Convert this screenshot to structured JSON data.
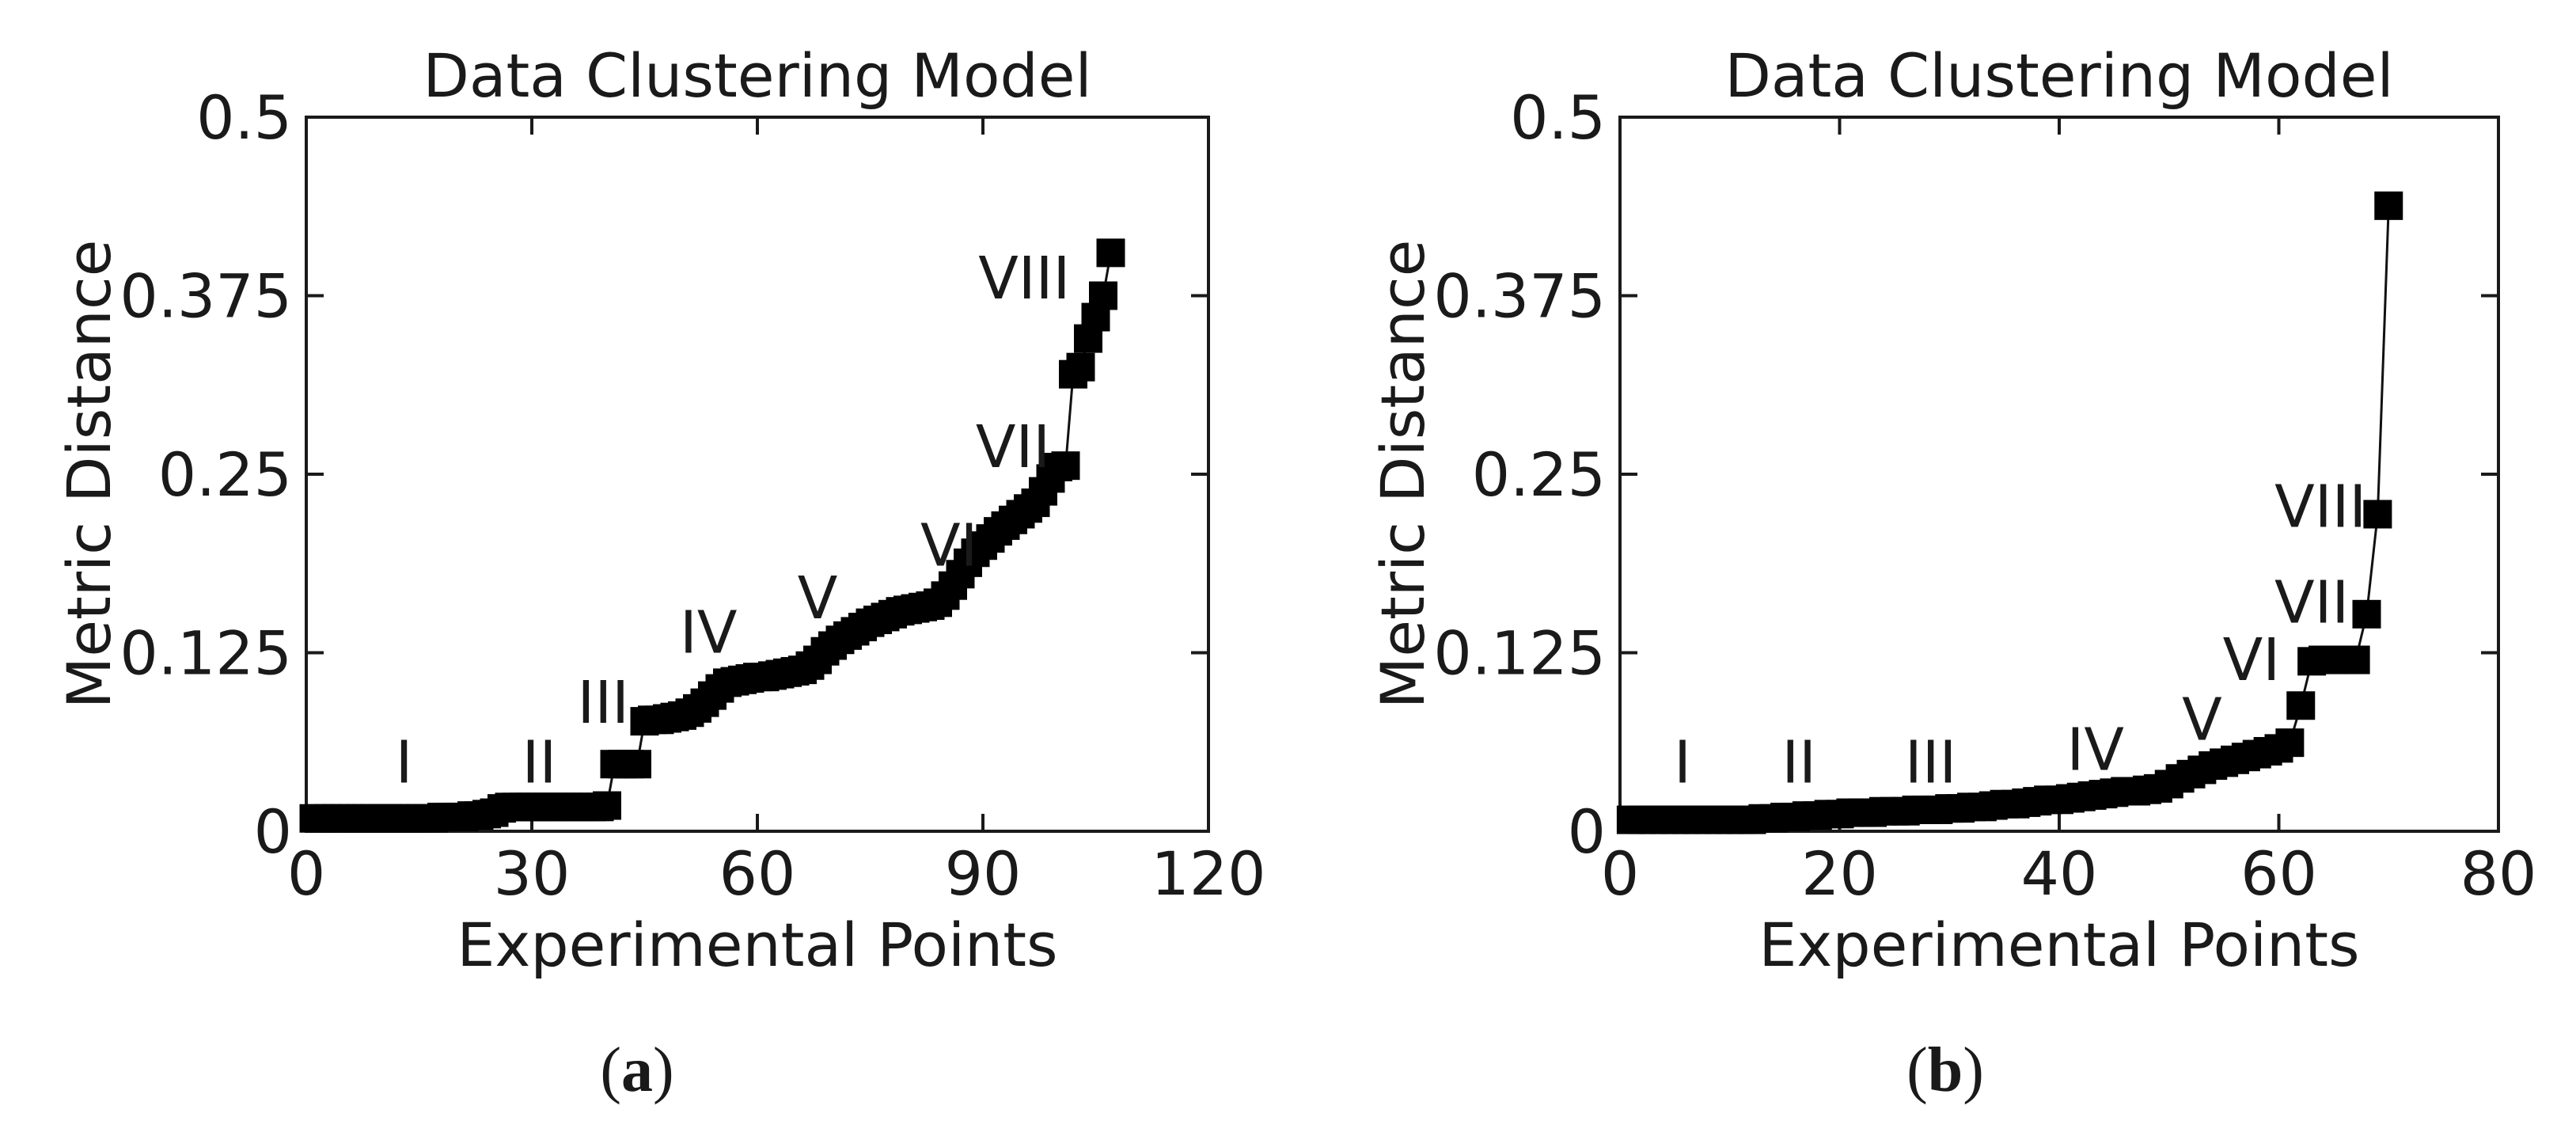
{
  "chart_data": [
    {
      "type": "line",
      "panel_label": "a",
      "title": "Data Clustering Model",
      "xlabel": "Experimental Points",
      "ylabel": "Metric Distance",
      "xlim": [
        0,
        120
      ],
      "ylim": [
        0,
        0.5
      ],
      "x_ticks": [
        0,
        30,
        60,
        90,
        120
      ],
      "x_tick_labels": [
        "0",
        "30",
        "60",
        "90",
        "120"
      ],
      "y_ticks": [
        0,
        0.125,
        0.25,
        0.375,
        0.5
      ],
      "y_tick_labels": [
        "0",
        "0.125",
        "0.25",
        "0.375",
        "0.5"
      ],
      "marker": "square",
      "series": [
        {
          "name": "Metric Distance",
          "x": [
            1,
            2,
            3,
            4,
            5,
            6,
            7,
            8,
            9,
            10,
            11,
            12,
            13,
            14,
            15,
            16,
            17,
            18,
            19,
            20,
            21,
            22,
            23,
            24,
            25,
            26,
            27,
            28,
            29,
            30,
            31,
            32,
            33,
            34,
            35,
            36,
            37,
            38,
            39,
            40,
            41,
            42,
            43,
            44,
            45,
            46,
            47,
            48,
            49,
            50,
            51,
            52,
            53,
            54,
            55,
            56,
            57,
            58,
            59,
            60,
            61,
            62,
            63,
            64,
            65,
            66,
            67,
            68,
            69,
            70,
            71,
            72,
            73,
            74,
            75,
            76,
            77,
            78,
            79,
            80,
            81,
            82,
            83,
            84,
            85,
            86,
            87,
            88,
            89,
            90,
            91,
            92,
            93,
            94,
            95,
            96,
            97,
            98,
            99,
            100,
            101,
            102,
            103,
            104,
            105,
            106,
            107
          ],
          "y": [
            0.009,
            0.009,
            0.009,
            0.009,
            0.009,
            0.009,
            0.009,
            0.009,
            0.009,
            0.009,
            0.009,
            0.009,
            0.009,
            0.009,
            0.009,
            0.009,
            0.009,
            0.01,
            0.01,
            0.01,
            0.01,
            0.011,
            0.011,
            0.012,
            0.013,
            0.016,
            0.017,
            0.017,
            0.017,
            0.017,
            0.017,
            0.017,
            0.017,
            0.017,
            0.017,
            0.017,
            0.017,
            0.017,
            0.017,
            0.018,
            0.047,
            0.047,
            0.047,
            0.047,
            0.077,
            0.078,
            0.078,
            0.079,
            0.08,
            0.081,
            0.083,
            0.086,
            0.09,
            0.095,
            0.1,
            0.104,
            0.105,
            0.106,
            0.107,
            0.108,
            0.108,
            0.109,
            0.11,
            0.111,
            0.112,
            0.113,
            0.116,
            0.12,
            0.126,
            0.13,
            0.134,
            0.137,
            0.14,
            0.143,
            0.146,
            0.148,
            0.15,
            0.152,
            0.154,
            0.155,
            0.156,
            0.157,
            0.158,
            0.16,
            0.165,
            0.172,
            0.18,
            0.188,
            0.195,
            0.2,
            0.205,
            0.21,
            0.214,
            0.218,
            0.222,
            0.226,
            0.23,
            0.238,
            0.247,
            0.255,
            0.256,
            0.32,
            0.325,
            0.345,
            0.36,
            0.375,
            0.405
          ]
        }
      ],
      "annotations": [
        {
          "text": "I",
          "x": 13,
          "y": 0.034
        },
        {
          "text": "II",
          "x": 31,
          "y": 0.034
        },
        {
          "text": "III",
          "x": 39.5,
          "y": 0.076
        },
        {
          "text": "IV",
          "x": 53.5,
          "y": 0.125
        },
        {
          "text": "V",
          "x": 68,
          "y": 0.149
        },
        {
          "text": "VI",
          "x": 85.5,
          "y": 0.186
        },
        {
          "text": "VII",
          "x": 94,
          "y": 0.255
        },
        {
          "text": "VIII",
          "x": 95.5,
          "y": 0.373
        }
      ]
    },
    {
      "type": "line",
      "panel_label": "b",
      "title": "Data Clustering Model",
      "xlabel": "Experimental Points",
      "ylabel": "Metric Distance",
      "xlim": [
        0,
        80
      ],
      "ylim": [
        0,
        0.5
      ],
      "x_ticks": [
        0,
        20,
        40,
        60,
        80
      ],
      "x_tick_labels": [
        "0",
        "20",
        "40",
        "60",
        "80"
      ],
      "y_ticks": [
        0,
        0.125,
        0.25,
        0.375,
        0.5
      ],
      "y_tick_labels": [
        "0",
        "0.125",
        "0.25",
        "0.375",
        "0.5"
      ],
      "marker": "square",
      "series": [
        {
          "name": "Metric Distance",
          "x": [
            1,
            2,
            3,
            4,
            5,
            6,
            7,
            8,
            9,
            10,
            11,
            12,
            13,
            14,
            15,
            16,
            17,
            18,
            19,
            20,
            21,
            22,
            23,
            24,
            25,
            26,
            27,
            28,
            29,
            30,
            31,
            32,
            33,
            34,
            35,
            36,
            37,
            38,
            39,
            40,
            41,
            42,
            43,
            44,
            45,
            46,
            47,
            48,
            49,
            50,
            51,
            52,
            53,
            54,
            55,
            56,
            57,
            58,
            59,
            60,
            61,
            62,
            63,
            64,
            65,
            66,
            67,
            68,
            69,
            70
          ],
          "y": [
            0.008,
            0.008,
            0.008,
            0.008,
            0.008,
            0.008,
            0.008,
            0.008,
            0.008,
            0.008,
            0.008,
            0.008,
            0.009,
            0.009,
            0.01,
            0.01,
            0.011,
            0.011,
            0.012,
            0.012,
            0.013,
            0.013,
            0.013,
            0.014,
            0.014,
            0.014,
            0.015,
            0.015,
            0.015,
            0.016,
            0.016,
            0.017,
            0.017,
            0.018,
            0.019,
            0.019,
            0.02,
            0.021,
            0.022,
            0.022,
            0.023,
            0.024,
            0.025,
            0.026,
            0.027,
            0.028,
            0.028,
            0.029,
            0.03,
            0.033,
            0.037,
            0.04,
            0.043,
            0.046,
            0.048,
            0.05,
            0.052,
            0.054,
            0.056,
            0.058,
            0.062,
            0.088,
            0.119,
            0.12,
            0.12,
            0.12,
            0.12,
            0.152,
            0.222,
            0.438
          ]
        }
      ],
      "annotations": [
        {
          "text": "I",
          "x": 5.7,
          "y": 0.034
        },
        {
          "text": "II",
          "x": 16.3,
          "y": 0.034
        },
        {
          "text": "III",
          "x": 28.3,
          "y": 0.034
        },
        {
          "text": "IV",
          "x": 43.3,
          "y": 0.043
        },
        {
          "text": "V",
          "x": 53,
          "y": 0.064
        },
        {
          "text": "VI",
          "x": 57.5,
          "y": 0.106
        },
        {
          "text": "VII",
          "x": 63,
          "y": 0.146
        },
        {
          "text": "VIII",
          "x": 63.8,
          "y": 0.213
        }
      ]
    }
  ]
}
